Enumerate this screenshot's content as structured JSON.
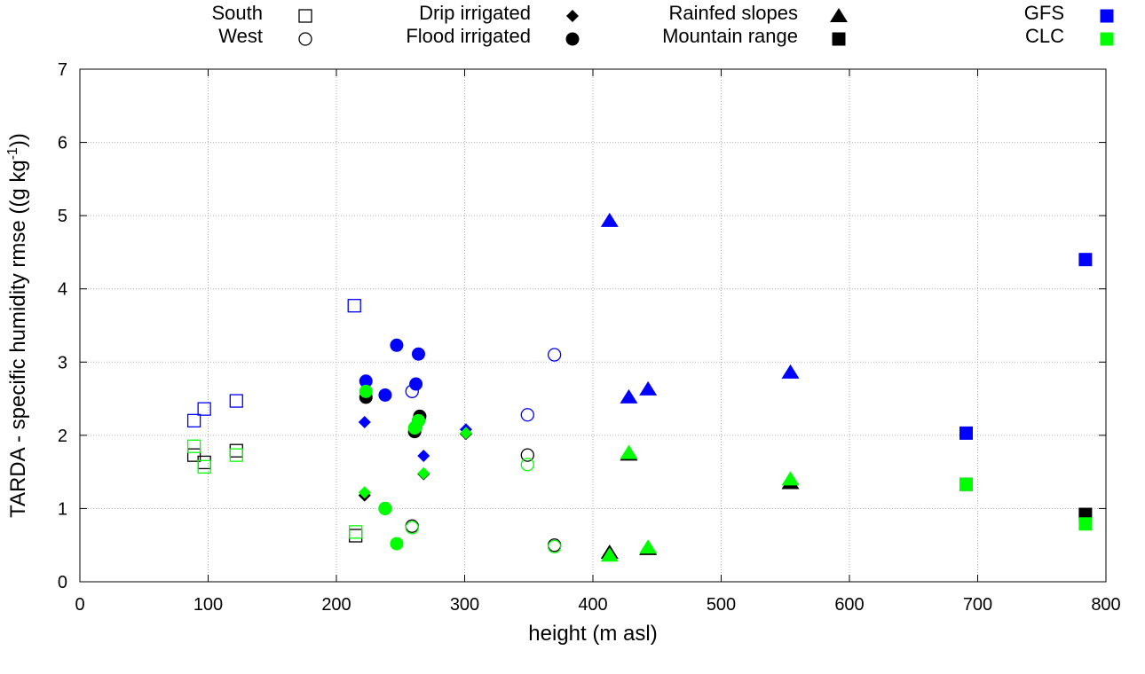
{
  "chart_data": {
    "type": "scatter",
    "title": "",
    "xlabel": "height (m asl)",
    "ylabel_main": "TARDA - specific humidity rmse ((g kg",
    "ylabel_sup": "-1",
    "ylabel_tail": "))",
    "xlim": [
      0,
      800
    ],
    "ylim": [
      0,
      7
    ],
    "xticks": [
      0,
      100,
      200,
      300,
      400,
      500,
      600,
      700,
      800
    ],
    "yticks": [
      0,
      1,
      2,
      3,
      4,
      5,
      6,
      7
    ],
    "grid": true,
    "legend": {
      "placement": "top",
      "shapes": [
        {
          "label": "South",
          "marker": "square-open"
        },
        {
          "label": "West",
          "marker": "circle-open"
        },
        {
          "label": "Drip irrigated",
          "marker": "diamond"
        },
        {
          "label": "Flood irrigated",
          "marker": "circle"
        },
        {
          "label": "Rainfed slopes",
          "marker": "triangle"
        },
        {
          "label": "Mountain range",
          "marker": "square"
        }
      ],
      "colors": [
        {
          "label": "GFS",
          "color": "#0000ff"
        },
        {
          "label": "CLC",
          "color": "#00ff00"
        }
      ]
    },
    "series": [
      {
        "name": "South GFS",
        "marker": "square-open",
        "color": "#0000ff",
        "points": [
          [
            214,
            3.77
          ],
          [
            89,
            2.2
          ],
          [
            97,
            2.36
          ],
          [
            122,
            2.47
          ]
        ]
      },
      {
        "name": "South baseline",
        "marker": "square-open",
        "color": "#000000",
        "points": [
          [
            89,
            1.73
          ],
          [
            97,
            1.63
          ],
          [
            122,
            1.79
          ],
          [
            215,
            0.63
          ]
        ]
      },
      {
        "name": "South CLC",
        "marker": "square-open",
        "color": "#00ff00",
        "points": [
          [
            89,
            1.85
          ],
          [
            97,
            1.57
          ],
          [
            122,
            1.73
          ],
          [
            215,
            0.68
          ]
        ]
      },
      {
        "name": "West GFS",
        "marker": "circle-open",
        "color": "#0000ff",
        "points": [
          [
            370,
            3.1
          ],
          [
            349,
            2.28
          ],
          [
            259,
            2.6
          ]
        ]
      },
      {
        "name": "West baseline",
        "marker": "circle-open",
        "color": "#000000",
        "points": [
          [
            349,
            1.73
          ],
          [
            370,
            0.5
          ],
          [
            259,
            0.76
          ]
        ]
      },
      {
        "name": "West CLC",
        "marker": "circle-open",
        "color": "#00ff00",
        "points": [
          [
            349,
            1.6
          ],
          [
            370,
            0.48
          ],
          [
            259,
            0.74
          ]
        ]
      },
      {
        "name": "Drip GFS",
        "marker": "diamond",
        "color": "#0000ff",
        "points": [
          [
            222,
            2.18
          ],
          [
            268,
            1.72
          ],
          [
            301,
            2.08
          ]
        ]
      },
      {
        "name": "Drip baseline",
        "marker": "diamond",
        "color": "#000000",
        "points": [
          [
            222,
            1.18
          ],
          [
            268,
            1.47
          ],
          [
            301,
            2.02
          ]
        ]
      },
      {
        "name": "Drip CLC",
        "marker": "diamond",
        "color": "#00ff00",
        "points": [
          [
            222,
            1.22
          ],
          [
            268,
            1.48
          ],
          [
            301,
            2.03
          ]
        ]
      },
      {
        "name": "Flood GFS",
        "marker": "circle",
        "color": "#0000ff",
        "points": [
          [
            247,
            3.23
          ],
          [
            264,
            3.11
          ],
          [
            223,
            2.74
          ],
          [
            262,
            2.7
          ],
          [
            238,
            2.55
          ]
        ]
      },
      {
        "name": "Flood baseline",
        "marker": "circle",
        "color": "#000000",
        "points": [
          [
            223,
            2.52
          ],
          [
            265,
            2.26
          ],
          [
            264,
            2.2
          ],
          [
            261,
            2.05
          ],
          [
            238,
            1.0
          ]
        ]
      },
      {
        "name": "Flood CLC",
        "marker": "circle",
        "color": "#00ff00",
        "points": [
          [
            223,
            2.6
          ],
          [
            264,
            2.2
          ],
          [
            262,
            2.12
          ],
          [
            261,
            2.1
          ],
          [
            238,
            1.0
          ],
          [
            247,
            0.52
          ]
        ]
      },
      {
        "name": "Rainfed GFS",
        "marker": "triangle",
        "color": "#0000ff",
        "points": [
          [
            413,
            4.93
          ],
          [
            428,
            2.52
          ],
          [
            443,
            2.63
          ],
          [
            554,
            2.86
          ]
        ]
      },
      {
        "name": "Rainfed baseline",
        "marker": "triangle",
        "color": "#000000",
        "points": [
          [
            413,
            0.4
          ],
          [
            428,
            1.74
          ],
          [
            443,
            0.45
          ],
          [
            554,
            1.35
          ]
        ]
      },
      {
        "name": "Rainfed CLC",
        "marker": "triangle",
        "color": "#00ff00",
        "points": [
          [
            413,
            0.36
          ],
          [
            428,
            1.76
          ],
          [
            443,
            0.47
          ],
          [
            554,
            1.4
          ]
        ]
      },
      {
        "name": "Mountain GFS",
        "marker": "square",
        "color": "#0000ff",
        "points": [
          [
            784,
            4.4
          ],
          [
            691,
            2.03
          ]
        ]
      },
      {
        "name": "Mountain baseline",
        "marker": "square",
        "color": "#000000",
        "points": [
          [
            784,
            0.92
          ],
          [
            691,
            1.33
          ]
        ]
      },
      {
        "name": "Mountain CLC",
        "marker": "square",
        "color": "#00ff00",
        "points": [
          [
            784,
            0.79
          ],
          [
            691,
            1.33
          ]
        ]
      }
    ]
  }
}
